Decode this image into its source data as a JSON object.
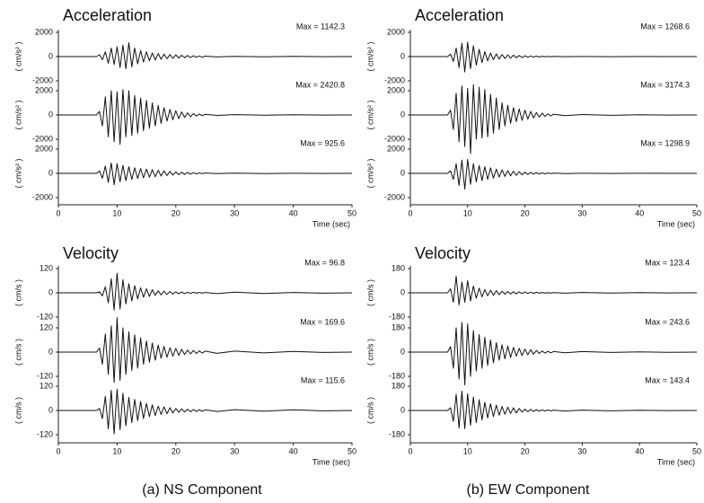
{
  "chart_data": [
    {
      "type": "line",
      "title": "Acceleration",
      "xlabel": "Time (sec)",
      "color": "#111111",
      "xlim": [
        0,
        50
      ],
      "xticks": [
        0,
        10,
        20,
        30,
        40,
        50
      ],
      "x": [
        0,
        6.5,
        7,
        7.5,
        8,
        8.5,
        9,
        9.5,
        10,
        10.5,
        11,
        11.5,
        12,
        12.5,
        13,
        13.5,
        14,
        14.5,
        15,
        15.5,
        16,
        16.5,
        17,
        17.5,
        18,
        18.5,
        19,
        19.5,
        20,
        20.5,
        21,
        21.5,
        22,
        22.5,
        23,
        23.5,
        24,
        24.5,
        25,
        27,
        30,
        35,
        40,
        45,
        50
      ],
      "panels": [
        {
          "ylabel": "( cm/s² )",
          "annotation": "Max = 1142.3",
          "ylim": [
            -2000,
            2000
          ],
          "yticks": [
            -2000,
            0,
            2000
          ],
          "values": [
            0,
            0,
            150,
            -250,
            400,
            -550,
            700,
            -650,
            800,
            -900,
            950,
            -1000,
            1142.3,
            -850,
            700,
            -600,
            500,
            -450,
            400,
            -350,
            300,
            -280,
            250,
            -220,
            200,
            -180,
            160,
            -150,
            140,
            -120,
            110,
            -100,
            90,
            -80,
            70,
            -60,
            50,
            -50,
            40,
            -30,
            25,
            -20,
            15,
            -10,
            0
          ]
        },
        {
          "ylabel": "( cm/s² )",
          "annotation": "Max = 2420.8",
          "ylim": [
            -2000,
            2000
          ],
          "yticks": [
            -2000,
            0,
            2000
          ],
          "values": [
            0,
            0,
            300,
            -900,
            1500,
            -1800,
            2000,
            -2200,
            1900,
            -2420.8,
            2100,
            -1800,
            2000,
            -1700,
            1600,
            -1500,
            1400,
            -1300,
            1200,
            -1100,
            1000,
            -900,
            800,
            -700,
            600,
            -500,
            450,
            -400,
            350,
            -300,
            250,
            -200,
            180,
            -150,
            120,
            -100,
            80,
            -60,
            50,
            -40,
            30,
            -20,
            15,
            -10,
            0
          ]
        },
        {
          "ylabel": "( cm/s² )",
          "annotation": "Max = 925.6",
          "ylim": [
            -2000,
            2000
          ],
          "yticks": [
            -2000,
            0,
            2000
          ],
          "values": [
            0,
            0,
            200,
            -400,
            600,
            -750,
            850,
            -925.6,
            800,
            -700,
            650,
            -600,
            550,
            -500,
            450,
            -420,
            400,
            -380,
            350,
            -320,
            300,
            -280,
            250,
            -220,
            200,
            -180,
            160,
            -140,
            120,
            -110,
            100,
            -90,
            80,
            -70,
            60,
            -50,
            40,
            -30,
            30,
            -25,
            20,
            -15,
            10,
            -5,
            0
          ]
        }
      ]
    },
    {
      "type": "line",
      "title": "Acceleration",
      "xlabel": "Time (sec)",
      "color": "#111111",
      "xlim": [
        0,
        50
      ],
      "xticks": [
        0,
        10,
        20,
        30,
        40,
        50
      ],
      "x": [
        0,
        6.5,
        7,
        7.5,
        8,
        8.5,
        9,
        9.5,
        10,
        10.5,
        11,
        11.5,
        12,
        12.5,
        13,
        13.5,
        14,
        14.5,
        15,
        15.5,
        16,
        16.5,
        17,
        17.5,
        18,
        18.5,
        19,
        19.5,
        20,
        20.5,
        21,
        21.5,
        22,
        22.5,
        23,
        23.5,
        24,
        24.5,
        25,
        27,
        30,
        35,
        40,
        45,
        50
      ],
      "panels": [
        {
          "ylabel": "( cm/s² )",
          "annotation": "Max = 1268.6",
          "ylim": [
            -2000,
            2000
          ],
          "yticks": [
            -2000,
            0,
            2000
          ],
          "values": [
            0,
            0,
            200,
            -400,
            700,
            -900,
            1100,
            -1268.6,
            1200,
            -1000,
            900,
            -700,
            600,
            -500,
            400,
            -350,
            300,
            -250,
            220,
            -200,
            180,
            -160,
            150,
            -130,
            120,
            -100,
            90,
            -80,
            70,
            -60,
            50,
            -40,
            40,
            -30,
            30,
            -25,
            20,
            -20,
            15,
            -10,
            10,
            -8,
            5,
            -3,
            0
          ]
        },
        {
          "ylabel": "( cm/s² )",
          "annotation": "Max = 3174.3",
          "ylim": [
            -2000,
            2000
          ],
          "yticks": [
            -2000,
            0,
            2000
          ],
          "values": [
            0,
            0,
            400,
            -1200,
            1800,
            -2200,
            2400,
            -2600,
            2200,
            -3174.3,
            2500,
            -2000,
            2300,
            -1900,
            2100,
            -1800,
            1700,
            -1500,
            1400,
            -1200,
            1000,
            -900,
            800,
            -700,
            600,
            -550,
            500,
            -450,
            400,
            -350,
            300,
            -250,
            200,
            -180,
            150,
            -120,
            100,
            -80,
            60,
            -50,
            40,
            -30,
            20,
            -10,
            0
          ]
        },
        {
          "ylabel": "( cm/s² )",
          "annotation": "Max = 1298.9",
          "ylim": [
            -2000,
            2000
          ],
          "yticks": [
            -2000,
            0,
            2000
          ],
          "values": [
            0,
            0,
            200,
            -500,
            800,
            -1000,
            1100,
            -1298.9,
            1150,
            -900,
            800,
            -700,
            650,
            -600,
            550,
            -500,
            450,
            -400,
            350,
            -300,
            280,
            -250,
            220,
            -200,
            180,
            -160,
            140,
            -120,
            100,
            -90,
            80,
            -70,
            60,
            -50,
            40,
            -35,
            30,
            -25,
            20,
            -15,
            10,
            -8,
            5,
            -3,
            0
          ]
        }
      ]
    },
    {
      "type": "line",
      "title": "Velocity",
      "xlabel": "Time (sec)",
      "color": "#111111",
      "xlim": [
        0,
        50
      ],
      "xticks": [
        0,
        10,
        20,
        30,
        40,
        50
      ],
      "x": [
        0,
        6.5,
        7,
        7.5,
        8,
        8.5,
        9,
        9.5,
        10,
        10.5,
        11,
        11.5,
        12,
        12.5,
        13,
        13.5,
        14,
        14.5,
        15,
        15.5,
        16,
        16.5,
        17,
        17.5,
        18,
        18.5,
        19,
        19.5,
        20,
        20.5,
        21,
        21.5,
        22,
        22.5,
        23,
        23.5,
        24,
        24.5,
        25,
        27,
        30,
        35,
        40,
        45,
        50
      ],
      "panels": [
        {
          "ylabel": "( cm/s )",
          "annotation": "Max = 96.8",
          "ylim": [
            -120,
            120
          ],
          "yticks": [
            -120,
            0,
            120
          ],
          "values": [
            0,
            0,
            5,
            -15,
            30,
            -50,
            70,
            -85,
            96.8,
            -80,
            65,
            -55,
            45,
            -40,
            35,
            -30,
            25,
            -22,
            20,
            -18,
            15,
            -12,
            10,
            -10,
            8,
            -8,
            6,
            -6,
            5,
            -5,
            4,
            -4,
            3,
            -3,
            3,
            -2,
            2,
            -2,
            2,
            -4,
            3,
            -3,
            2,
            -2,
            0
          ]
        },
        {
          "ylabel": "( cm/s )",
          "annotation": "Max = 169.6",
          "ylim": [
            -120,
            120
          ],
          "yticks": [
            -120,
            0,
            120
          ],
          "values": [
            0,
            0,
            20,
            -60,
            90,
            -110,
            130,
            -150,
            169.6,
            -140,
            120,
            -110,
            100,
            -90,
            85,
            -80,
            70,
            -60,
            55,
            -50,
            45,
            -40,
            35,
            -30,
            28,
            -25,
            22,
            -20,
            18,
            -16,
            14,
            -12,
            10,
            -9,
            8,
            -7,
            6,
            -5,
            5,
            -6,
            5,
            -4,
            3,
            -2,
            0
          ]
        },
        {
          "ylabel": "( cm/s )",
          "annotation": "Max = 115.6",
          "ylim": [
            -120,
            120
          ],
          "yticks": [
            -120,
            0,
            120
          ],
          "values": [
            0,
            0,
            10,
            -40,
            70,
            -90,
            100,
            -115.6,
            105,
            -95,
            85,
            -75,
            65,
            -60,
            55,
            -50,
            45,
            -40,
            35,
            -30,
            28,
            -25,
            22,
            -20,
            18,
            -16,
            14,
            -12,
            10,
            -9,
            8,
            -7,
            6,
            -6,
            5,
            -5,
            4,
            -4,
            3,
            -5,
            4,
            -3,
            3,
            -2,
            0
          ]
        }
      ]
    },
    {
      "type": "line",
      "title": "Velocity",
      "xlabel": "Time (sec)",
      "color": "#111111",
      "xlim": [
        0,
        50
      ],
      "xticks": [
        0,
        10,
        20,
        30,
        40,
        50
      ],
      "x": [
        0,
        6.5,
        7,
        7.5,
        8,
        8.5,
        9,
        9.5,
        10,
        10.5,
        11,
        11.5,
        12,
        12.5,
        13,
        13.5,
        14,
        14.5,
        15,
        15.5,
        16,
        16.5,
        17,
        17.5,
        18,
        18.5,
        19,
        19.5,
        20,
        20.5,
        21,
        21.5,
        22,
        22.5,
        23,
        23.5,
        24,
        24.5,
        25,
        27,
        30,
        35,
        40,
        45,
        50
      ],
      "panels": [
        {
          "ylabel": "( cm/s )",
          "annotation": "Max = 123.4",
          "ylim": [
            -180,
            180
          ],
          "yticks": [
            -180,
            0,
            180
          ],
          "values": [
            0,
            0,
            30,
            -70,
            123.4,
            -90,
            80,
            -70,
            90,
            -60,
            50,
            -40,
            35,
            -30,
            25,
            -22,
            20,
            -18,
            16,
            -14,
            12,
            -10,
            10,
            -9,
            8,
            -8,
            7,
            -6,
            6,
            -5,
            5,
            -4,
            4,
            -3,
            3,
            -3,
            2,
            -2,
            2,
            -3,
            3,
            -2,
            2,
            -1,
            0
          ]
        },
        {
          "ylabel": "( cm/s )",
          "annotation": "Max = 243.6",
          "ylim": [
            -180,
            180
          ],
          "yticks": [
            -180,
            0,
            180
          ],
          "values": [
            0,
            0,
            40,
            -120,
            180,
            -200,
            220,
            -243.6,
            210,
            -180,
            160,
            -140,
            130,
            -120,
            110,
            -100,
            90,
            -80,
            70,
            -60,
            55,
            -50,
            45,
            -40,
            35,
            -30,
            28,
            -25,
            22,
            -20,
            18,
            -15,
            12,
            -10,
            8,
            -7,
            6,
            -5,
            4,
            -5,
            4,
            -3,
            2,
            -2,
            0
          ]
        },
        {
          "ylabel": "( cm/s )",
          "annotation": "Max = 143.4",
          "ylim": [
            -180,
            180
          ],
          "yticks": [
            -180,
            0,
            180
          ],
          "values": [
            0,
            0,
            20,
            -80,
            120,
            -130,
            143.4,
            -135,
            125,
            -110,
            100,
            -90,
            80,
            -70,
            60,
            -55,
            50,
            -45,
            40,
            -35,
            30,
            -28,
            25,
            -22,
            20,
            -18,
            15,
            -12,
            10,
            -9,
            8,
            -7,
            6,
            -5,
            5,
            -4,
            4,
            -3,
            3,
            -4,
            3,
            -3,
            2,
            -1,
            0
          ]
        }
      ]
    }
  ],
  "captions": [
    "(a) NS Component",
    "(b) EW Component"
  ]
}
